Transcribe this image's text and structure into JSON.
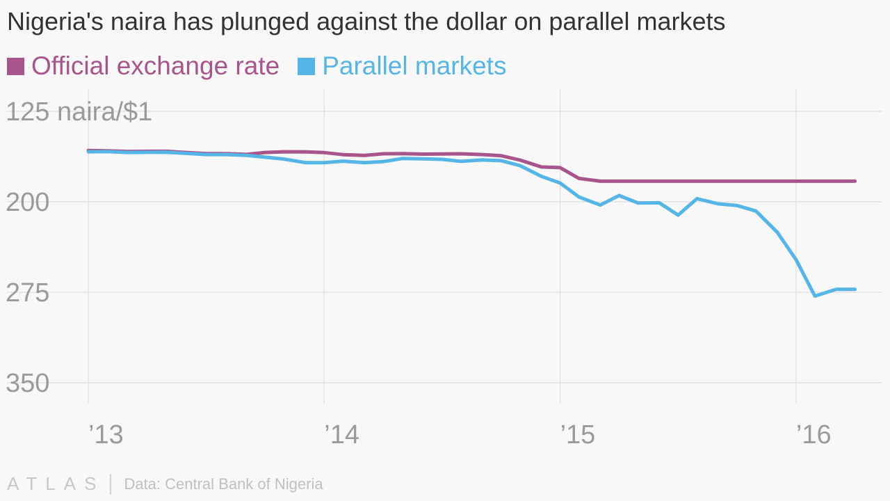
{
  "title": "Nigeria's naira has plunged against the dollar on parallel markets",
  "legend": [
    {
      "label": "Official exchange rate",
      "color": "#a8558c"
    },
    {
      "label": "Parallel markets",
      "color": "#54b5e6"
    }
  ],
  "footer": {
    "brand": "ATLAS",
    "source": "Data: Central Bank of Nigeria"
  },
  "chart_data": {
    "type": "line",
    "title": "Nigeria's naira has plunged against the dollar on parallel markets",
    "ylabel": "",
    "y_unit_label": "naira/$1",
    "y_inverted": true,
    "ylim": [
      125,
      350
    ],
    "yticks": [
      {
        "value": 125,
        "label": "125 naira/$1"
      },
      {
        "value": 200,
        "label": "200"
      },
      {
        "value": 275,
        "label": "275"
      },
      {
        "value": 350,
        "label": "350"
      }
    ],
    "xlim": [
      2013.0,
      2016.3
    ],
    "xticks": [
      {
        "value": 2013,
        "label": "’13"
      },
      {
        "value": 2014,
        "label": "’14"
      },
      {
        "value": 2015,
        "label": "’15"
      },
      {
        "value": 2016,
        "label": "’16"
      }
    ],
    "grid": true,
    "legend_position": "top-left",
    "series": [
      {
        "name": "Official exchange rate",
        "color": "#a8558c",
        "points": [
          [
            2013.0,
            157.5
          ],
          [
            2013.08,
            157.7
          ],
          [
            2013.17,
            158.3
          ],
          [
            2013.25,
            158.2
          ],
          [
            2013.33,
            158.1
          ],
          [
            2013.42,
            159.2
          ],
          [
            2013.5,
            160.0
          ],
          [
            2013.58,
            160.1
          ],
          [
            2013.67,
            160.7
          ],
          [
            2013.75,
            159.1
          ],
          [
            2013.83,
            158.5
          ],
          [
            2013.92,
            158.6
          ],
          [
            2014.0,
            159.2
          ],
          [
            2014.08,
            160.9
          ],
          [
            2014.17,
            161.6
          ],
          [
            2014.25,
            160.2
          ],
          [
            2014.33,
            160.0
          ],
          [
            2014.42,
            160.5
          ],
          [
            2014.5,
            160.3
          ],
          [
            2014.58,
            160.2
          ],
          [
            2014.67,
            160.8
          ],
          [
            2014.75,
            161.8
          ],
          [
            2014.83,
            165.4
          ],
          [
            2014.92,
            171.1
          ],
          [
            2015.0,
            171.7
          ],
          [
            2015.08,
            180.6
          ],
          [
            2015.17,
            182.9
          ],
          [
            2015.25,
            182.9
          ],
          [
            2015.5,
            182.9
          ],
          [
            2015.75,
            182.9
          ],
          [
            2016.0,
            182.9
          ],
          [
            2016.25,
            182.9
          ]
        ]
      },
      {
        "name": "Parallel markets",
        "color": "#54b5e6",
        "points": [
          [
            2013.0,
            158.5
          ],
          [
            2013.08,
            158.4
          ],
          [
            2013.17,
            159.1
          ],
          [
            2013.25,
            159.0
          ],
          [
            2013.33,
            158.9
          ],
          [
            2013.42,
            159.9
          ],
          [
            2013.5,
            160.8
          ],
          [
            2013.58,
            160.8
          ],
          [
            2013.67,
            161.5
          ],
          [
            2013.75,
            163.0
          ],
          [
            2013.83,
            164.6
          ],
          [
            2013.92,
            167.5
          ],
          [
            2014.0,
            167.6
          ],
          [
            2014.08,
            166.3
          ],
          [
            2014.17,
            167.6
          ],
          [
            2014.25,
            166.7
          ],
          [
            2014.33,
            164.1
          ],
          [
            2014.42,
            164.4
          ],
          [
            2014.5,
            164.8
          ],
          [
            2014.58,
            166.5
          ],
          [
            2014.67,
            165.3
          ],
          [
            2014.75,
            165.9
          ],
          [
            2014.83,
            170.0
          ],
          [
            2014.92,
            178.9
          ],
          [
            2015.0,
            184.4
          ],
          [
            2015.08,
            196.0
          ],
          [
            2015.17,
            202.7
          ],
          [
            2015.25,
            194.8
          ],
          [
            2015.33,
            201.0
          ],
          [
            2015.42,
            200.8
          ],
          [
            2015.5,
            211.0
          ],
          [
            2015.58,
            197.4
          ],
          [
            2015.67,
            201.7
          ],
          [
            2015.75,
            203.1
          ],
          [
            2015.83,
            207.7
          ],
          [
            2015.92,
            225.2
          ],
          [
            2016.0,
            248.0
          ],
          [
            2016.08,
            278.2
          ],
          [
            2016.17,
            272.6
          ],
          [
            2016.25,
            272.6
          ]
        ]
      }
    ]
  }
}
